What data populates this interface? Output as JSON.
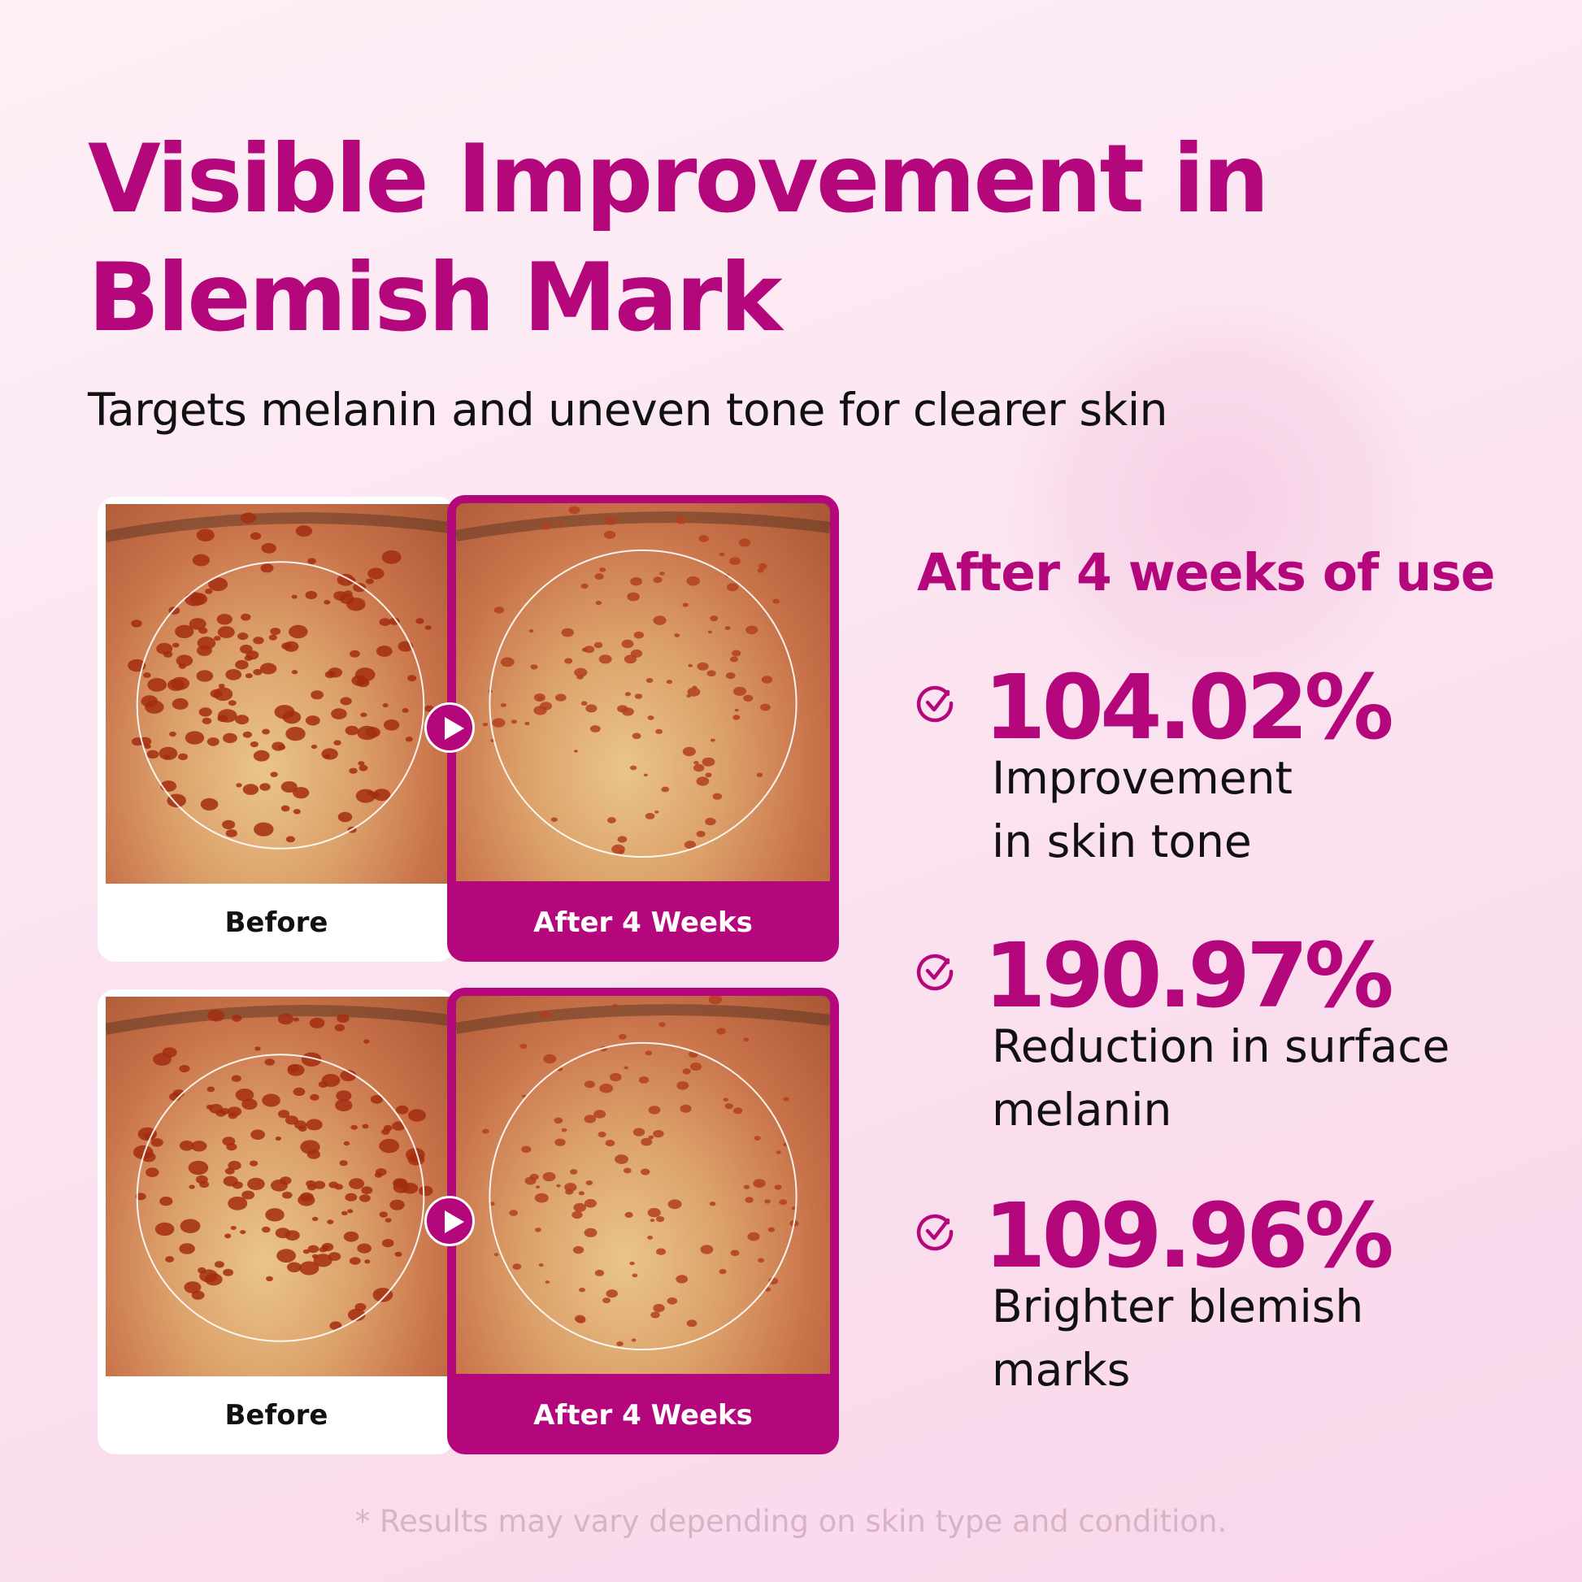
{
  "header": {
    "title_line1": "Visible Improvement in",
    "title_line2": "Blemish Mark",
    "subtitle": "Targets melanin and uneven tone for clearer skin"
  },
  "comparisons": [
    {
      "before_label": "Before",
      "after_label": "After 4 Weeks"
    },
    {
      "before_label": "Before",
      "after_label": "After 4 Weeks"
    }
  ],
  "results": {
    "heading": "After 4 weeks of use",
    "stats": [
      {
        "value": "104.02%",
        "line1": "Improvement",
        "line2": "in skin tone",
        "icon": "check-circle-icon"
      },
      {
        "value": "190.97%",
        "line1": "Reduction in surface",
        "line2": "melanin",
        "icon": "check-circle-icon"
      },
      {
        "value": "109.96%",
        "line1": "Brighter blemish",
        "line2": "marks",
        "icon": "check-circle-icon"
      }
    ]
  },
  "footer": {
    "disclaimer": "* Results may vary depending on skin type and condition."
  },
  "colors": {
    "accent": "#b5077c",
    "text": "#111111",
    "background": "#fbe3f0"
  }
}
